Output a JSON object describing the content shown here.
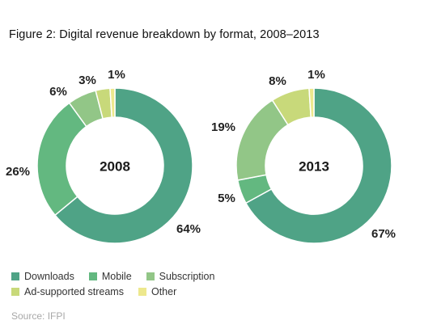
{
  "title": "Figure 2: Digital revenue breakdown by format, 2008–2013",
  "source": "Source: IFPI",
  "chart_data": {
    "type": "pie",
    "categories": [
      "Downloads",
      "Mobile",
      "Subscription",
      "Ad-supported streams",
      "Other"
    ],
    "colors": [
      "#4fa386",
      "#63b880",
      "#92c687",
      "#c8d97a",
      "#ede88d"
    ],
    "series": [
      {
        "name": "2008",
        "values": [
          64,
          26,
          6,
          3,
          1
        ],
        "labels": [
          "64%",
          "26%",
          "6%",
          "3%",
          "1%"
        ]
      },
      {
        "name": "2013",
        "values": [
          67,
          5,
          19,
          8,
          1
        ],
        "labels": [
          "67%",
          "5%",
          "19%",
          "8%",
          "1%"
        ]
      }
    ],
    "legend": "bottom-left"
  }
}
